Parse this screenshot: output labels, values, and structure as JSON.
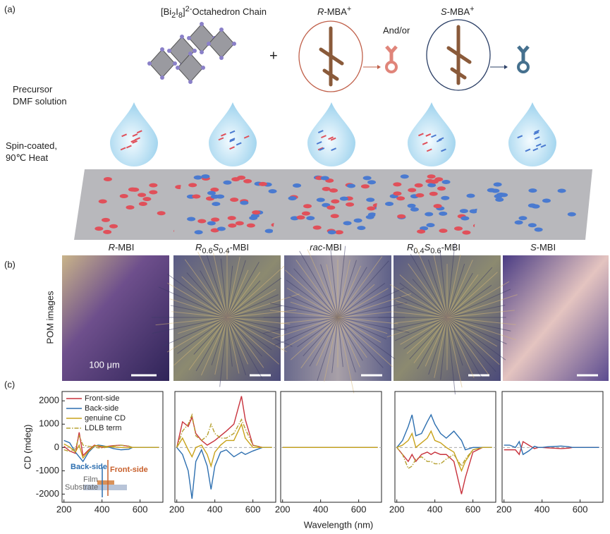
{
  "panel_a": {
    "label": "(a)",
    "chain_label": [
      "[Bi",
      "2",
      "I",
      "8",
      "]",
      "2-",
      "Octahedron Chain"
    ],
    "plus": "+",
    "r_mba": [
      "R",
      "-MBA",
      "+"
    ],
    "and_or": "And/or",
    "s_mba": [
      "S",
      "-MBA",
      "+"
    ],
    "precursor": [
      "Precursor",
      "DMF solution"
    ],
    "spin": [
      "Spin-coated,",
      "90℃ Heat"
    ],
    "samples": [
      [
        "R",
        "-MBI"
      ],
      [
        "R",
        "0.6",
        "S",
        "0.4",
        "-MBI"
      ],
      [
        "rac",
        "-MBI"
      ],
      [
        "R",
        "0.4",
        "S",
        "0.6",
        "-MBI"
      ],
      [
        "S",
        "-MBI"
      ]
    ]
  },
  "panel_b": {
    "label": "(b)",
    "side_label": "POM images",
    "scale_bar": "100 μm"
  },
  "panel_c": {
    "label": "(c)",
    "xlabel": "Wavelength (nm)",
    "inset": {
      "back": "Back-side",
      "front": "Front-side",
      "film": "Film",
      "substrate": "Substrate"
    }
  },
  "chart_data": [
    {
      "type": "line",
      "ylabel": "CD (mdeg)",
      "legend": "upper left",
      "x": [
        200,
        230,
        260,
        280,
        300,
        330,
        360,
        380,
        400,
        430,
        460,
        500,
        540,
        560,
        600,
        650,
        700
      ],
      "xlim": [
        190,
        720
      ],
      "ylim": [
        -2350,
        2400
      ],
      "xticks": [
        200,
        400,
        600
      ],
      "yticks": [
        -2000,
        -1000,
        0,
        1000,
        2000
      ],
      "series": [
        {
          "name": "Front-side",
          "color": "#c8323c",
          "values": [
            50,
            -150,
            -250,
            650,
            -350,
            -100,
            100,
            50,
            0,
            50,
            80,
            100,
            50,
            0,
            0,
            0,
            0
          ]
        },
        {
          "name": "Back-side",
          "color": "#2d6fb0",
          "values": [
            300,
            200,
            -200,
            -400,
            -600,
            -200,
            50,
            100,
            80,
            30,
            -50,
            -100,
            -80,
            0,
            0,
            0,
            0
          ]
        },
        {
          "name": "genuine CD",
          "color": "#c8a21a",
          "values": [
            150,
            20,
            -200,
            100,
            -450,
            -150,
            70,
            80,
            40,
            40,
            20,
            0,
            -10,
            0,
            0,
            0,
            0
          ]
        },
        {
          "name": "LDLB term",
          "color": "#b5a030",
          "linestyle": "dashdot",
          "values": [
            -100,
            -170,
            -50,
            500,
            100,
            50,
            20,
            -20,
            -20,
            10,
            60,
            100,
            60,
            0,
            0,
            0,
            0
          ]
        }
      ]
    },
    {
      "type": "line",
      "x": [
        200,
        230,
        260,
        280,
        300,
        330,
        360,
        380,
        400,
        430,
        460,
        500,
        540,
        560,
        600,
        650,
        700
      ],
      "xlim": [
        190,
        720
      ],
      "ylim": [
        -2350,
        2400
      ],
      "xticks": [
        200,
        400,
        600
      ],
      "series": [
        {
          "color": "#c8323c",
          "values": [
            0,
            1100,
            900,
            1300,
            600,
            300,
            100,
            200,
            300,
            500,
            700,
            1000,
            2200,
            1200,
            100,
            0,
            0
          ]
        },
        {
          "color": "#2d6fb0",
          "values": [
            0,
            -300,
            -1000,
            -2200,
            -600,
            -100,
            -800,
            -1800,
            -800,
            -200,
            -100,
            -400,
            -200,
            -300,
            -150,
            0,
            0
          ]
        },
        {
          "color": "#c8a21a",
          "values": [
            0,
            400,
            -100,
            -400,
            0,
            100,
            -300,
            -800,
            -200,
            100,
            300,
            300,
            1000,
            400,
            0,
            0,
            0
          ]
        },
        {
          "color": "#b5a030",
          "linestyle": "dashdot",
          "values": [
            0,
            700,
            1000,
            1400,
            500,
            300,
            500,
            1000,
            600,
            400,
            400,
            600,
            1200,
            800,
            100,
            0,
            0
          ]
        }
      ]
    },
    {
      "type": "line",
      "x": [
        200,
        230,
        260,
        280,
        300,
        330,
        360,
        380,
        400,
        430,
        460,
        500,
        540,
        560,
        600,
        650,
        700
      ],
      "xlim": [
        190,
        720
      ],
      "ylim": [
        -2350,
        2400
      ],
      "xticks": [
        200,
        400,
        600
      ],
      "series": [
        {
          "color": "#c8323c",
          "values": [
            0,
            0,
            0,
            0,
            0,
            0,
            0,
            0,
            0,
            0,
            0,
            0,
            0,
            0,
            0,
            0,
            0
          ]
        },
        {
          "color": "#2d6fb0",
          "values": [
            0,
            0,
            0,
            0,
            0,
            0,
            0,
            0,
            0,
            0,
            0,
            0,
            0,
            0,
            0,
            0,
            0
          ]
        },
        {
          "color": "#c8a21a",
          "values": [
            0,
            0,
            0,
            0,
            0,
            0,
            0,
            0,
            0,
            0,
            0,
            0,
            0,
            0,
            0,
            0,
            0
          ]
        }
      ]
    },
    {
      "type": "line",
      "x": [
        200,
        230,
        260,
        280,
        300,
        330,
        360,
        380,
        400,
        430,
        460,
        500,
        540,
        560,
        600,
        650,
        700
      ],
      "xlim": [
        190,
        720
      ],
      "ylim": [
        -2350,
        2400
      ],
      "xticks": [
        200,
        400,
        600
      ],
      "series": [
        {
          "color": "#c8323c",
          "values": [
            0,
            -300,
            -600,
            -300,
            -600,
            -300,
            -200,
            -300,
            -200,
            -300,
            -300,
            -600,
            -2000,
            -1300,
            -200,
            0,
            0
          ]
        },
        {
          "color": "#2d6fb0",
          "values": [
            0,
            300,
            900,
            1400,
            500,
            600,
            1100,
            1400,
            1000,
            600,
            400,
            700,
            300,
            -100,
            0,
            0,
            0
          ]
        },
        {
          "color": "#c8a21a",
          "values": [
            0,
            100,
            300,
            600,
            0,
            200,
            400,
            700,
            300,
            200,
            0,
            -200,
            -1000,
            -600,
            -100,
            0,
            0
          ]
        },
        {
          "color": "#b5a030",
          "linestyle": "dashdot",
          "values": [
            0,
            -300,
            -900,
            -800,
            -500,
            -400,
            -600,
            -600,
            -700,
            -700,
            -500,
            -300,
            -800,
            -500,
            -100,
            0,
            0
          ]
        }
      ]
    },
    {
      "type": "line",
      "x": [
        200,
        230,
        260,
        280,
        300,
        330,
        360,
        380,
        400,
        430,
        460,
        500,
        540,
        560,
        600,
        650,
        700
      ],
      "xlim": [
        190,
        720
      ],
      "ylim": [
        -2350,
        2400
      ],
      "xticks": [
        200,
        400,
        600
      ],
      "series": [
        {
          "color": "#c8323c",
          "values": [
            -100,
            -100,
            -100,
            -300,
            250,
            100,
            -50,
            0,
            0,
            -20,
            -30,
            -50,
            -30,
            0,
            0,
            0,
            0
          ]
        },
        {
          "color": "#2d6fb0",
          "values": [
            100,
            100,
            0,
            250,
            -300,
            -150,
            50,
            0,
            0,
            30,
            40,
            60,
            30,
            0,
            0,
            0,
            0
          ]
        }
      ]
    }
  ]
}
